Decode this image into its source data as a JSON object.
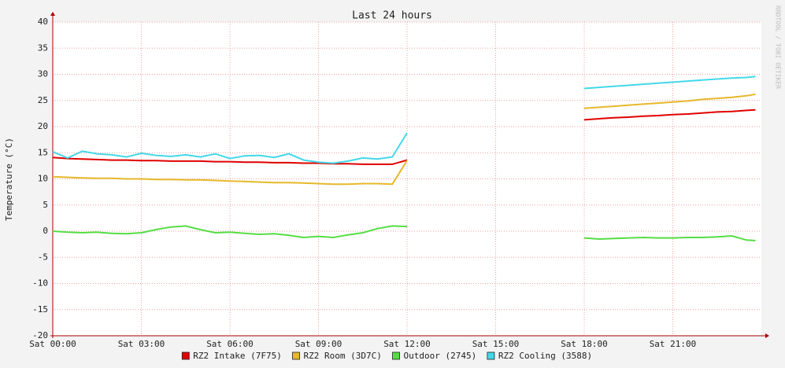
{
  "chart_data": {
    "type": "line",
    "title": "Last 24 hours",
    "y_label": "Temperature (°C)",
    "watermark": "RRDTOOL / TOBI OETIKER",
    "x": [
      0,
      0.5,
      1,
      1.5,
      2,
      2.5,
      3,
      3.5,
      4,
      4.5,
      5,
      5.5,
      6,
      6.5,
      7,
      7.5,
      8,
      8.5,
      9,
      9.5,
      10,
      10.5,
      11,
      11.5,
      12,
      15,
      18,
      18.5,
      19,
      19.5,
      20,
      20.5,
      21,
      21.5,
      22,
      22.5,
      23,
      23.5,
      23.8
    ],
    "xlim": [
      0,
      24
    ],
    "xticks": [
      {
        "value": 0,
        "label": "Sat 00:00"
      },
      {
        "value": 3,
        "label": "Sat 03:00"
      },
      {
        "value": 6,
        "label": "Sat 06:00"
      },
      {
        "value": 9,
        "label": "Sat 09:00"
      },
      {
        "value": 12,
        "label": "Sat 12:00"
      },
      {
        "value": 15,
        "label": "Sat 15:00"
      },
      {
        "value": 18,
        "label": "Sat 18:00"
      },
      {
        "value": 21,
        "label": "Sat 21:00"
      }
    ],
    "ylim": [
      -20,
      40
    ],
    "yticks": [
      -20,
      -15,
      -10,
      -5,
      0,
      5,
      10,
      15,
      20,
      25,
      30,
      35,
      40
    ],
    "grid": true,
    "legend": "bottom",
    "series": [
      {
        "name": "RZ2 Intake (7F75)",
        "color": "#e00000",
        "values": [
          14.1,
          13.9,
          13.8,
          13.7,
          13.6,
          13.6,
          13.5,
          13.5,
          13.4,
          13.4,
          13.4,
          13.3,
          13.3,
          13.2,
          13.2,
          13.1,
          13.1,
          13.0,
          13.0,
          12.9,
          12.9,
          12.8,
          12.8,
          12.8,
          13.6,
          null,
          21.3,
          21.5,
          21.7,
          21.8,
          22.0,
          22.1,
          22.3,
          22.4,
          22.6,
          22.8,
          22.9,
          23.1,
          23.2
        ]
      },
      {
        "name": "RZ2 Room (3D7C)",
        "color": "#e6b82a",
        "values": [
          10.4,
          10.3,
          10.2,
          10.1,
          10.1,
          10.0,
          10.0,
          9.9,
          9.9,
          9.8,
          9.8,
          9.7,
          9.6,
          9.5,
          9.4,
          9.3,
          9.3,
          9.2,
          9.1,
          9.0,
          9.0,
          9.1,
          9.1,
          9.0,
          13.5,
          null,
          23.5,
          23.7,
          23.9,
          24.1,
          24.3,
          24.5,
          24.7,
          24.9,
          25.2,
          25.4,
          25.6,
          25.9,
          26.2
        ]
      },
      {
        "name": "Outdoor (2745)",
        "color": "#55dd44",
        "values": [
          0.0,
          -0.2,
          -0.3,
          -0.2,
          -0.4,
          -0.5,
          -0.3,
          0.3,
          0.8,
          1.0,
          0.3,
          -0.3,
          -0.2,
          -0.4,
          -0.6,
          -0.5,
          -0.8,
          -1.2,
          -1.0,
          -1.2,
          -0.7,
          -0.3,
          0.5,
          1.0,
          0.9,
          null,
          -1.3,
          -1.5,
          -1.4,
          -1.3,
          -1.2,
          -1.3,
          -1.3,
          -1.2,
          -1.2,
          -1.1,
          -0.9,
          -1.7,
          -1.8
        ]
      },
      {
        "name": "RZ2 Cooling (3588)",
        "color": "#44d8e8",
        "values": [
          15.2,
          14.0,
          15.3,
          14.8,
          14.6,
          14.2,
          14.9,
          14.5,
          14.3,
          14.6,
          14.2,
          14.8,
          13.9,
          14.4,
          14.5,
          14.1,
          14.8,
          13.6,
          13.2,
          13.0,
          13.4,
          14.0,
          13.8,
          14.2,
          18.8,
          null,
          27.3,
          27.5,
          27.7,
          27.9,
          28.1,
          28.3,
          28.5,
          28.7,
          28.9,
          29.1,
          29.3,
          29.4,
          29.6
        ]
      }
    ]
  }
}
